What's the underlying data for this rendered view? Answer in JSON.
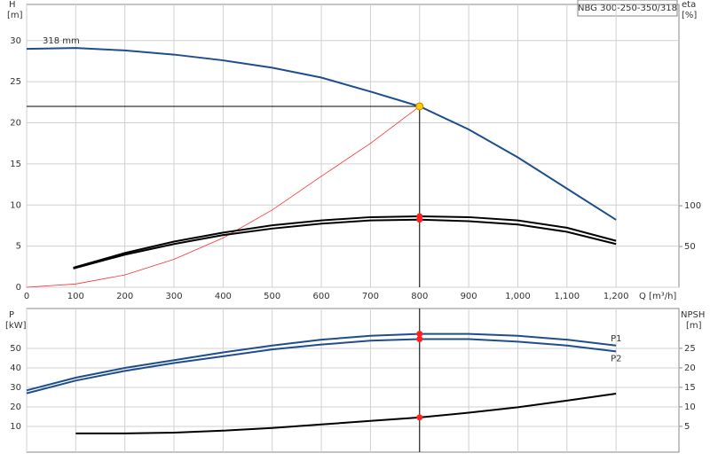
{
  "chart_data": [
    {
      "type": "line",
      "title": "NBG 300-250-350/318",
      "y_label": "H",
      "y_unit": "[m]",
      "y2_label": "eta",
      "y2_unit": "[%]",
      "x_label": "Q [m³/h]",
      "xlim": [
        0,
        1328
      ],
      "xticks": [
        0,
        100,
        200,
        300,
        400,
        500,
        600,
        700,
        800,
        900,
        {
          "value": 1000,
          "label": "1,000"
        },
        {
          "value": 1100,
          "label": "1,100"
        },
        {
          "value": 1200,
          "label": "1,200"
        }
      ],
      "ylim": [
        0,
        34.4
      ],
      "yticks": [
        0,
        5,
        10,
        15,
        20,
        25,
        30
      ],
      "y2lim": [
        0,
        347
      ],
      "y2ticks": [
        50,
        100
      ],
      "grid": true,
      "duty_point": {
        "x": 800,
        "y": 22
      },
      "series": [
        {
          "name": "318 mm",
          "color": "#1f4e8c",
          "x": [
            0,
            100,
            200,
            300,
            400,
            500,
            600,
            700,
            800,
            900,
            1000,
            1100,
            1200
          ],
          "values": [
            29,
            29.1,
            28.8,
            28.3,
            27.6,
            26.7,
            25.5,
            23.8,
            22,
            19.2,
            15.8,
            12,
            8.2
          ]
        },
        {
          "color": "#ff3030",
          "x": [
            0,
            100,
            200,
            300,
            400,
            500,
            600,
            700,
            800
          ],
          "values": [
            0,
            0.4,
            1.5,
            3.4,
            6,
            9.4,
            13.5,
            17.5,
            22
          ]
        },
        {
          "color": "#000000",
          "axis": "y2",
          "x": [
            95,
            200,
            300,
            400,
            500,
            600,
            700,
            800,
            900,
            1000,
            1100,
            1200
          ],
          "values": [
            24,
            42,
            56,
            67,
            76,
            82,
            86,
            87,
            86,
            82,
            73,
            57
          ]
        },
        {
          "color": "#000000",
          "axis": "y2",
          "x": [
            95,
            200,
            300,
            400,
            500,
            600,
            700,
            800,
            900,
            1000,
            1100,
            1200
          ],
          "values": [
            23,
            40,
            53,
            64,
            72,
            78,
            82,
            83,
            81,
            77,
            68,
            53
          ]
        }
      ]
    },
    {
      "type": "line",
      "y_label": "P",
      "y_unit": "[kW]",
      "y2_label": "NPSH",
      "y2_unit": "[m]",
      "xlim": [
        0,
        1328
      ],
      "ylim": [
        -3.2,
        70.5
      ],
      "yticks": [
        10,
        20,
        30,
        40,
        50
      ],
      "y2lim": [
        -1.6,
        35.2
      ],
      "y2ticks": [
        5,
        10,
        15,
        20,
        25
      ],
      "grid": true,
      "duty_x": 800,
      "series": [
        {
          "name": "P1",
          "color": "#1f4e8c",
          "x": [
            0,
            100,
            200,
            300,
            400,
            500,
            600,
            700,
            800,
            900,
            1000,
            1100,
            1200
          ],
          "values": [
            28.5,
            35,
            40,
            44,
            48,
            51.5,
            54.5,
            56.5,
            57.5,
            57.5,
            56.5,
            54.5,
            51.5
          ]
        },
        {
          "name": "P2",
          "color": "#1f4e8c",
          "x": [
            0,
            100,
            200,
            300,
            400,
            500,
            600,
            700,
            800,
            900,
            1000,
            1100,
            1200
          ],
          "values": [
            27,
            33.5,
            38.5,
            42.5,
            46,
            49.5,
            52,
            54,
            54.8,
            54.8,
            53.5,
            51.5,
            48.5
          ]
        },
        {
          "color": "#000000",
          "axis": "y2",
          "x": [
            100,
            200,
            300,
            400,
            500,
            600,
            700,
            800,
            900,
            1000,
            1100,
            1200
          ],
          "values": [
            3.2,
            3.2,
            3.4,
            3.9,
            4.6,
            5.5,
            6.4,
            7.3,
            8.5,
            9.9,
            11.6,
            13.4
          ]
        }
      ]
    }
  ]
}
